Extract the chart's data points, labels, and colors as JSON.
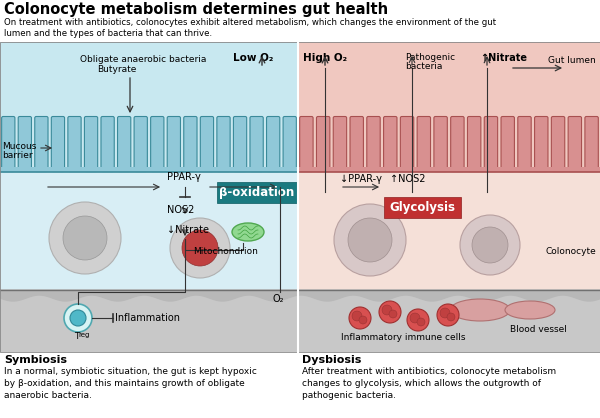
{
  "title": "Colonocyte metabolism determines gut health",
  "subtitle": "On treatment with antibiotics, colonocytes exhibit altered metabolism, which changes the environment of the gut\nlumen and the types of bacteria that can thrive.",
  "bg_color": "#ffffff",
  "left_lumen_bg": "#c8e8f0",
  "right_lumen_bg": "#f0c8c0",
  "left_cell_bg": "#d8eef5",
  "right_cell_bg": "#f5e0d8",
  "left_villi_color": "#5aacbe",
  "right_villi_color": "#c87870",
  "bottom_layer_color": "#c8c8c8",
  "footer_left_title": "Symbiosis",
  "footer_left_text": "In a normal, symbiotic situation, the gut is kept hypoxic\nby β-oxidation, and this maintains growth of obligate\nanaerobic bacteria.",
  "footer_right_title": "Dysbiosis",
  "footer_right_text": "After treatment with antibiotics, colonocyte metabolism\nchanges to glycolysis, which allows the outgrowth of\npathogenic bacteria."
}
